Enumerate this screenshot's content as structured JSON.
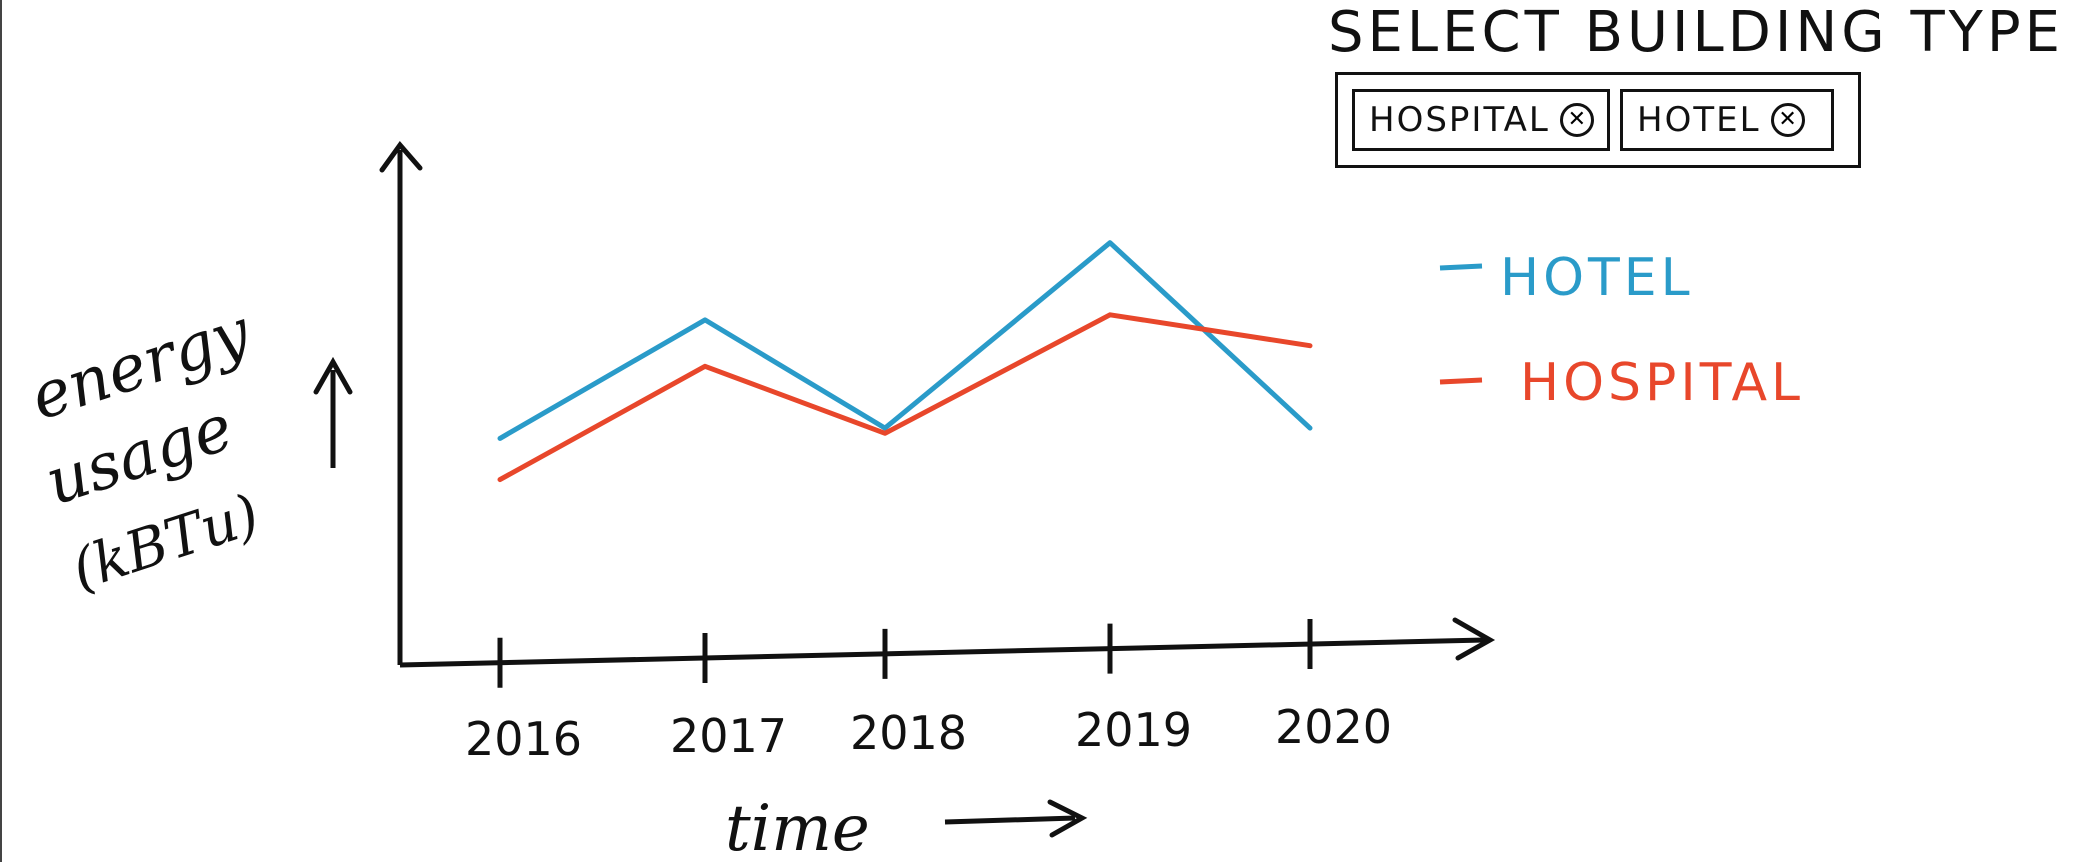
{
  "filter": {
    "title": "SELECT BUILDING TYPE",
    "chips": [
      {
        "label": "HOSPITAL",
        "remove_icon": "close-circle-icon"
      },
      {
        "label": "HOTEL",
        "remove_icon": "close-circle-icon"
      }
    ]
  },
  "chart_data": {
    "type": "line",
    "title": "",
    "x": [
      "2016",
      "2017",
      "2018",
      "2019",
      "2020"
    ],
    "xlabel": "time",
    "ylabel_lines": [
      "energy",
      "usage",
      "(kBTu)"
    ],
    "ylabel": "energy usage (kBTu)",
    "ylim": [
      0,
      100
    ],
    "grid": false,
    "legend_position": "right",
    "series": [
      {
        "name": "HOTEL",
        "color": "#2a9bc9",
        "values": [
          44,
          67,
          46,
          82,
          46
        ]
      },
      {
        "name": "HOSPITAL",
        "color": "#e8472b",
        "values": [
          36,
          58,
          45,
          68,
          62
        ]
      }
    ]
  }
}
